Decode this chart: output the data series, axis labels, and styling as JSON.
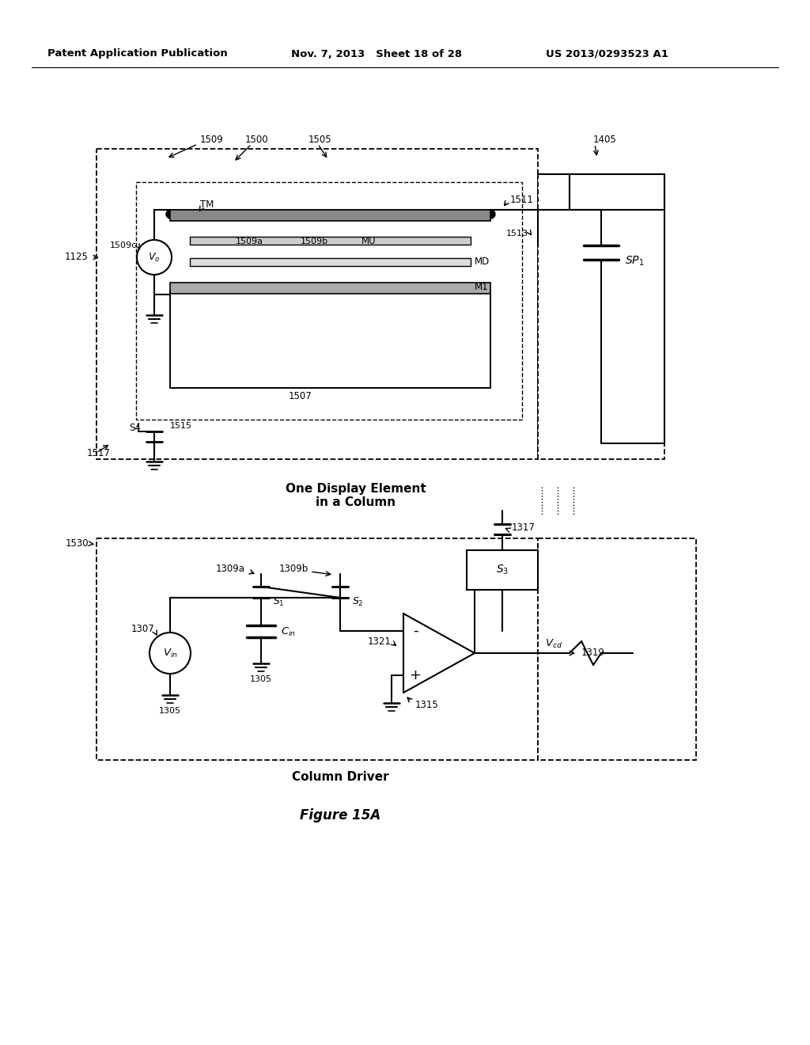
{
  "bg_color": "#ffffff",
  "header_left": "Patent Application Publication",
  "header_mid": "Nov. 7, 2013   Sheet 18 of 28",
  "header_right": "US 2013/0293523 A1",
  "figure_label": "Figure 15A",
  "caption_top": "One Display Element\nin a Column",
  "caption_bottom": "Column Driver"
}
